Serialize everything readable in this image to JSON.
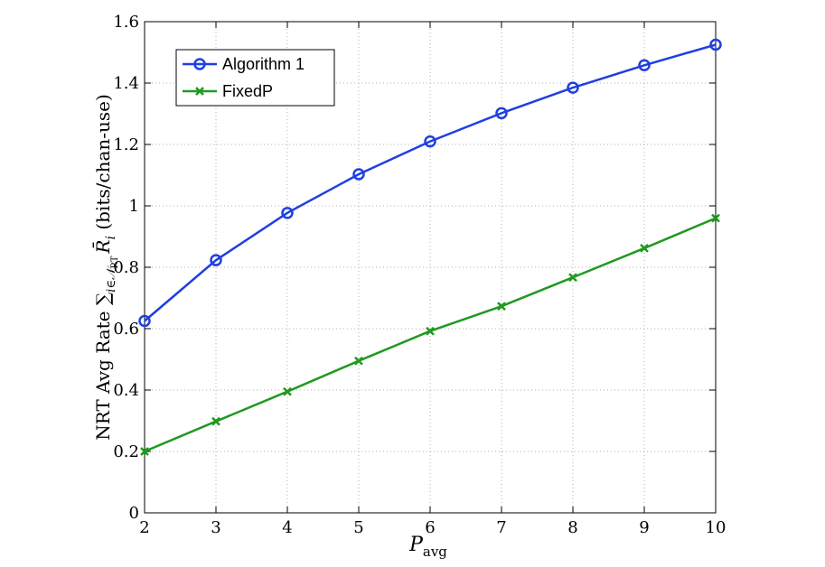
{
  "chart_data": {
    "type": "line",
    "x": [
      2,
      3,
      4,
      5,
      6,
      7,
      8,
      9,
      10
    ],
    "series": [
      {
        "name": "Algorithm 1",
        "color": "#1f3fe0",
        "marker": "circle",
        "values": [
          0.625,
          0.823,
          0.977,
          1.103,
          1.21,
          1.302,
          1.385,
          1.458,
          1.525
        ]
      },
      {
        "name": "FixedP",
        "color": "#1f9a1f",
        "marker": "x",
        "values": [
          0.2,
          0.298,
          0.395,
          0.495,
          0.592,
          0.673,
          0.767,
          0.862,
          0.96
        ]
      }
    ],
    "xlim": [
      2,
      10
    ],
    "ylim": [
      0,
      1.6
    ],
    "xticks": [
      "2",
      "3",
      "4",
      "5",
      "6",
      "7",
      "8",
      "9",
      "10"
    ],
    "yticks": [
      "0",
      "0.2",
      "0.4",
      "0.6",
      "0.8",
      "1",
      "1.2",
      "1.4",
      "1.6"
    ],
    "xlabel": {
      "main": "P",
      "sub": "avg"
    },
    "ylabel": {
      "prefix": "NRT Avg Rate ∑",
      "sum_sub": "i∈𝒩",
      "sum_subsub": "RT",
      "var": "R̄",
      "var_sub": "i",
      "units": " (bits/chan-use)"
    },
    "grid": true,
    "legend_position": "top-left"
  }
}
